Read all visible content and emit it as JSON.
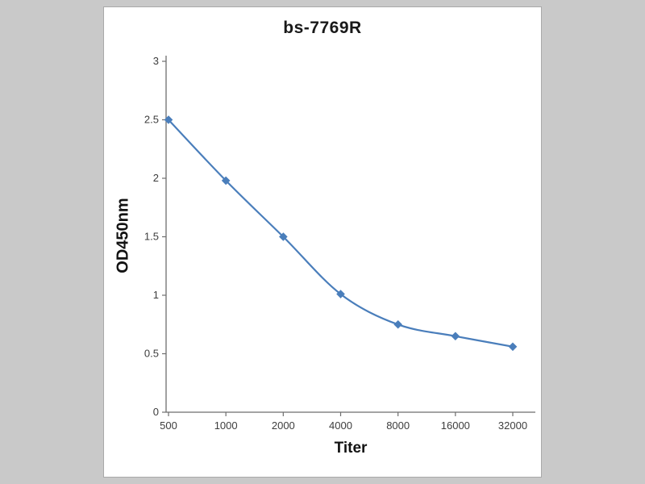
{
  "chart_data": {
    "type": "line",
    "title": "bs-7769R",
    "xlabel": "Titer",
    "ylabel": "OD450nm",
    "categories": [
      "500",
      "1000",
      "2000",
      "4000",
      "8000",
      "16000",
      "32000"
    ],
    "series": [
      {
        "name": "OD450nm",
        "values": [
          2.5,
          1.98,
          1.5,
          1.01,
          0.75,
          0.65,
          0.56
        ]
      }
    ],
    "ylim": [
      0,
      3
    ],
    "yticks": [
      0,
      0.5,
      1,
      1.5,
      2,
      2.5,
      3
    ],
    "grid": false,
    "legend": "none",
    "line_color": "#4a7ebb",
    "marker": "diamond",
    "background_color": "#c9c9c9",
    "plot_background_color": "#ffffff"
  }
}
